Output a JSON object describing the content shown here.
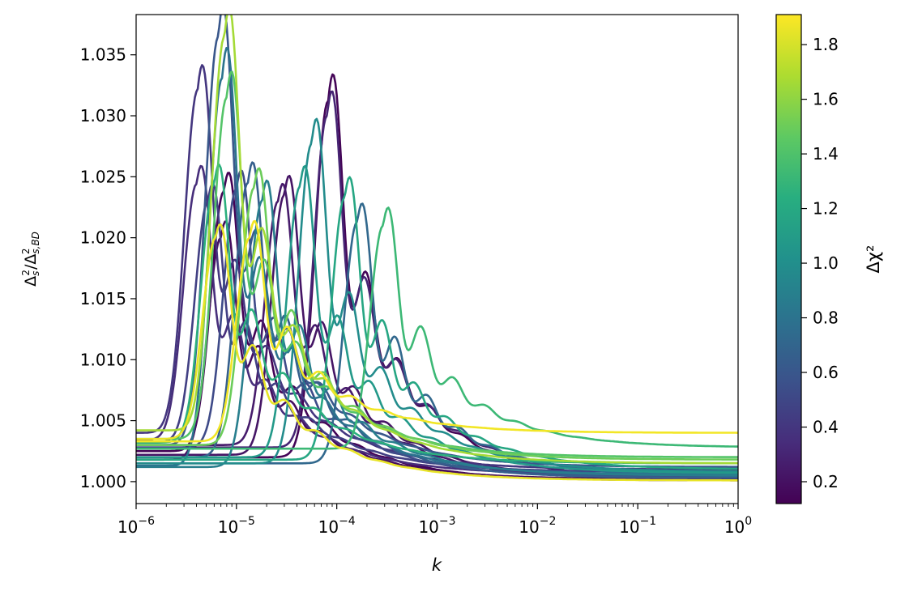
{
  "chart_data": {
    "type": "line",
    "title": "",
    "xlabel": "k",
    "ylabel": "Δ_s^2/Δ_{s,BD}^2",
    "xscale": "log",
    "xlim": [
      1e-06,
      1
    ],
    "ylim": [
      0.9982,
      1.0383
    ],
    "grid": false,
    "x_ticks": [
      {
        "value": 1e-06,
        "base": "10",
        "exp": "−6"
      },
      {
        "value": 1e-05,
        "base": "10",
        "exp": "−5"
      },
      {
        "value": 0.0001,
        "base": "10",
        "exp": "−4"
      },
      {
        "value": 0.001,
        "base": "10",
        "exp": "−3"
      },
      {
        "value": 0.01,
        "base": "10",
        "exp": "−2"
      },
      {
        "value": 0.1,
        "base": "10",
        "exp": "−1"
      },
      {
        "value": 1,
        "base": "10",
        "exp": "0"
      }
    ],
    "y_ticks": [
      {
        "value": 1.0,
        "label": "1.000"
      },
      {
        "value": 1.005,
        "label": "1.005"
      },
      {
        "value": 1.01,
        "label": "1.010"
      },
      {
        "value": 1.015,
        "label": "1.015"
      },
      {
        "value": 1.02,
        "label": "1.020"
      },
      {
        "value": 1.025,
        "label": "1.025"
      },
      {
        "value": 1.03,
        "label": "1.030"
      },
      {
        "value": 1.035,
        "label": "1.035"
      }
    ],
    "colorbar": {
      "label": "Δχ²",
      "colormap": "viridis",
      "range": [
        0.12,
        1.91
      ],
      "ticks": [
        {
          "value": 0.2,
          "label": "0.2"
        },
        {
          "value": 0.4,
          "label": "0.4"
        },
        {
          "value": 0.6,
          "label": "0.6"
        },
        {
          "value": 0.8,
          "label": "0.8"
        },
        {
          "value": 1.0,
          "label": "1.0"
        },
        {
          "value": 1.2,
          "label": "1.2"
        },
        {
          "value": 1.4,
          "label": "1.4"
        },
        {
          "value": 1.6,
          "label": "1.6"
        },
        {
          "value": 1.8,
          "label": "1.8"
        }
      ]
    },
    "series_model": "approximate curves: each rises from base near k=1e-6 to a peak at peak_k, oscillates with decaying ringing, then relaxes toward the tail value at k=1",
    "series": [
      {
        "dchi2": 0.13,
        "base": 1.0025,
        "peak_k": 7.5e-06,
        "peak": 1.0238,
        "tail": 1.0001
      },
      {
        "dchi2": 0.14,
        "base": 1.002,
        "peak_k": 8.2e-05,
        "peak": 1.0312,
        "tail": 1.0001
      },
      {
        "dchi2": 0.18,
        "base": 1.0018,
        "peak_k": 7e-06,
        "peak": 1.02,
        "tail": 1.0002
      },
      {
        "dchi2": 0.22,
        "base": 1.0022,
        "peak_k": 3e-05,
        "peak": 1.0235,
        "tail": 1.0003
      },
      {
        "dchi2": 0.25,
        "base": 1.003,
        "peak_k": 2.6e-05,
        "peak": 1.023,
        "tail": 1.0002
      },
      {
        "dchi2": 0.3,
        "base": 1.0028,
        "peak_k": 8e-05,
        "peak": 1.03,
        "tail": 1.0005
      },
      {
        "dchi2": 0.35,
        "base": 1.0034,
        "peak_k": 4e-06,
        "peak": 1.0244,
        "tail": 1.0006
      },
      {
        "dchi2": 0.4,
        "base": 1.004,
        "peak_k": 4.1e-06,
        "peak": 1.0321,
        "tail": 1.001
      },
      {
        "dchi2": 0.45,
        "base": 1.0032,
        "peak_k": 5.2e-06,
        "peak": 1.023,
        "tail": 1.0008
      },
      {
        "dchi2": 0.52,
        "base": 1.0028,
        "peak_k": 1e-05,
        "peak": 1.024,
        "tail": 1.0004
      },
      {
        "dchi2": 0.6,
        "base": 1.003,
        "peak_k": 6.6e-06,
        "peak": 1.0365,
        "tail": 1.0012
      },
      {
        "dchi2": 0.66,
        "base": 1.002,
        "peak_k": 1.3e-05,
        "peak": 1.0245,
        "tail": 1.0003
      },
      {
        "dchi2": 0.72,
        "base": 1.0015,
        "peak_k": 0.00016,
        "peak": 1.0213,
        "tail": 1.0004
      },
      {
        "dchi2": 0.8,
        "base": 1.0013,
        "peak_k": 7.2e-06,
        "peak": 1.0331,
        "tail": 1.0006
      },
      {
        "dchi2": 0.88,
        "base": 1.0012,
        "peak_k": 1.8e-05,
        "peak": 1.023,
        "tail": 1.0005
      },
      {
        "dchi2": 0.98,
        "base": 1.0015,
        "peak_k": 5.6e-05,
        "peak": 1.0277,
        "tail": 1.0008
      },
      {
        "dchi2": 1.08,
        "base": 1.002,
        "peak_k": 4.3e-05,
        "peak": 1.0242,
        "tail": 1.0007
      },
      {
        "dchi2": 1.18,
        "base": 1.0018,
        "peak_k": 0.00012,
        "peak": 1.0233,
        "tail": 1.001
      },
      {
        "dchi2": 1.25,
        "base": 1.0032,
        "peak_k": 6e-06,
        "peak": 1.0244,
        "tail": 1.0015
      },
      {
        "dchi2": 1.32,
        "base": 1.0027,
        "peak_k": 0.00029,
        "peak": 1.021,
        "tail": 1.0028
      },
      {
        "dchi2": 1.42,
        "base": 1.0035,
        "peak_k": 8e-06,
        "peak": 1.0315,
        "tail": 1.002
      },
      {
        "dchi2": 1.5,
        "base": 1.003,
        "peak_k": 1.5e-05,
        "peak": 1.0241,
        "tail": 1.0018
      },
      {
        "dchi2": 1.66,
        "base": 1.0042,
        "peak_k": 7.6e-06,
        "peak": 1.0365,
        "tail": 1.0015
      },
      {
        "dchi2": 1.85,
        "base": 1.0035,
        "peak_k": 6.2e-06,
        "peak": 1.02,
        "tail": 1.0001
      },
      {
        "dchi2": 1.88,
        "base": 1.0033,
        "peak_k": 1.35e-05,
        "peak": 1.02,
        "tail": 1.004
      }
    ]
  }
}
